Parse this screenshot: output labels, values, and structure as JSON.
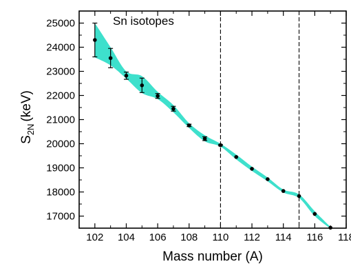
{
  "chart_data": {
    "type": "scatter",
    "annotation": "Sn isotopes",
    "xlabel": "Mass number (A)",
    "ylabel_main": "S",
    "ylabel_sub": "2N",
    "ylabel_unit": "(keV)",
    "xlim": [
      101,
      118
    ],
    "ylim": [
      16500,
      25500
    ],
    "xticks": [
      102,
      104,
      106,
      108,
      110,
      112,
      114,
      116,
      118
    ],
    "yticks": [
      17000,
      18000,
      19000,
      20000,
      21000,
      22000,
      23000,
      24000,
      25000
    ],
    "vlines": [
      110,
      115
    ],
    "points": [
      {
        "x": 102,
        "y": 24300,
        "err": 700
      },
      {
        "x": 103,
        "y": 23550,
        "err": 400
      },
      {
        "x": 104,
        "y": 22820,
        "err": 150
      },
      {
        "x": 105,
        "y": 22420,
        "err": 300
      },
      {
        "x": 106,
        "y": 21980,
        "err": 100
      },
      {
        "x": 107,
        "y": 21450,
        "err": 100
      },
      {
        "x": 108,
        "y": 20760,
        "err": 50
      },
      {
        "x": 109,
        "y": 20210,
        "err": 80
      },
      {
        "x": 110,
        "y": 19940,
        "err": 30
      },
      {
        "x": 111,
        "y": 19450,
        "err": 0
      },
      {
        "x": 112,
        "y": 18960,
        "err": 0
      },
      {
        "x": 113,
        "y": 18530,
        "err": 0
      },
      {
        "x": 114,
        "y": 18040,
        "err": 0
      },
      {
        "x": 115,
        "y": 17830,
        "err": 0
      },
      {
        "x": 116,
        "y": 17090,
        "err": 0
      },
      {
        "x": 117,
        "y": 16520,
        "err": 0
      }
    ],
    "band": {
      "color": "#3ee0cc",
      "upper": [
        [
          102,
          25000
        ],
        [
          103,
          24000
        ],
        [
          104,
          23000
        ],
        [
          105,
          22800
        ],
        [
          106,
          22150
        ],
        [
          107,
          21600
        ],
        [
          108,
          20850
        ],
        [
          109,
          20350
        ],
        [
          110,
          20000
        ],
        [
          111,
          19550
        ],
        [
          112,
          19050
        ],
        [
          113,
          18600
        ],
        [
          114,
          18100
        ],
        [
          115,
          17900
        ],
        [
          116,
          17200
        ],
        [
          117,
          16550
        ]
      ],
      "lower": [
        [
          102,
          23580
        ],
        [
          103,
          23250
        ],
        [
          104,
          22700
        ],
        [
          105,
          22100
        ],
        [
          106,
          21850
        ],
        [
          107,
          21300
        ],
        [
          108,
          20650
        ],
        [
          109,
          20100
        ],
        [
          110,
          19880
        ],
        [
          111,
          19350
        ],
        [
          112,
          18870
        ],
        [
          113,
          18440
        ],
        [
          114,
          17980
        ],
        [
          115,
          17750
        ],
        [
          116,
          17000
        ],
        [
          117,
          16480
        ]
      ]
    },
    "grid": false
  }
}
